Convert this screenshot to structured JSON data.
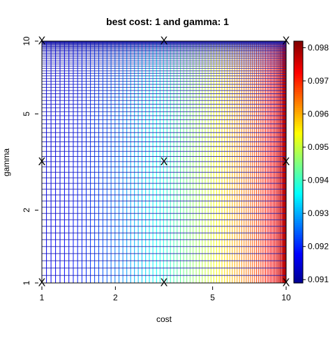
{
  "chart_data": {
    "type": "heatmap",
    "title": "best cost: 1  and gamma: 1",
    "xlabel": "cost",
    "ylabel": "gamma",
    "x_scale": "log",
    "y_scale": "log",
    "xlim": [
      1,
      10
    ],
    "ylim": [
      1,
      10
    ],
    "x_ticks": [
      "1",
      "2",
      "5",
      "10"
    ],
    "y_ticks": [
      "1",
      "2",
      "5",
      "10"
    ],
    "grid_tested_points": [
      {
        "x": 1,
        "y": 1
      },
      {
        "x": 3.16,
        "y": 1
      },
      {
        "x": 10,
        "y": 1
      },
      {
        "x": 1,
        "y": 3.16
      },
      {
        "x": 3.16,
        "y": 3.16
      },
      {
        "x": 10,
        "y": 3.16
      },
      {
        "x": 1,
        "y": 10
      },
      {
        "x": 3.16,
        "y": 10
      },
      {
        "x": 10,
        "y": 10
      }
    ],
    "marker_symbol": "X",
    "colorbar": {
      "range": [
        0.0909,
        0.0982
      ],
      "ticks": [
        "0.091",
        "0.092",
        "0.093",
        "0.094",
        "0.095",
        "0.096",
        "0.097",
        "0.098"
      ],
      "palette": "jet",
      "colors": [
        "#00008F",
        "#0000FF",
        "#00FFFF",
        "#FFFF00",
        "#FF0000",
        "#800000"
      ]
    },
    "legend": "right"
  }
}
